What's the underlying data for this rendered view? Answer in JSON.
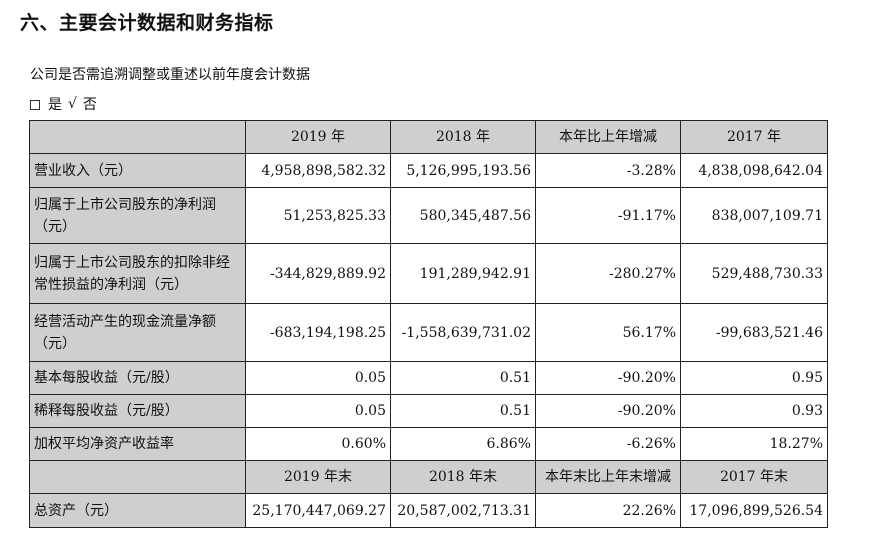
{
  "heading": "六、主要会计数据和财务指标",
  "note": "公司是否需追溯调整或重述以前年度会计数据",
  "options": {
    "checkbox": "□",
    "yes": "是",
    "check": "√",
    "no": "否"
  },
  "table": {
    "header1": [
      "",
      "2019 年",
      "2018 年",
      "本年比上年增减",
      "2017 年"
    ],
    "rows1": [
      {
        "label": "营业收入（元）",
        "values": [
          "4,958,898,582.32",
          "5,126,995,193.56",
          "-3.28%",
          "4,838,098,642.04"
        ]
      },
      {
        "label_line1": "归属于上市公司股东的净利润",
        "label_line2": "（元）",
        "values": [
          "51,253,825.33",
          "580,345,487.56",
          "-91.17%",
          "838,007,109.71"
        ]
      },
      {
        "label_line1": "归属于上市公司股东的扣除非经",
        "label_line2": "常性损益的净利润（元）",
        "values": [
          "-344,829,889.92",
          "191,289,942.91",
          "-280.27%",
          "529,488,730.33"
        ]
      },
      {
        "label_line1": "经营活动产生的现金流量净额",
        "label_line2": "（元）",
        "values": [
          "-683,194,198.25",
          "-1,558,639,731.02",
          "56.17%",
          "-99,683,521.46"
        ]
      },
      {
        "label": "基本每股收益（元/股）",
        "values": [
          "0.05",
          "0.51",
          "-90.20%",
          "0.95"
        ]
      },
      {
        "label": "稀释每股收益（元/股）",
        "values": [
          "0.05",
          "0.51",
          "-90.20%",
          "0.93"
        ]
      },
      {
        "label": "加权平均净资产收益率",
        "values": [
          "0.60%",
          "6.86%",
          "-6.26%",
          "18.27%"
        ]
      }
    ],
    "header2": [
      "",
      "2019 年末",
      "2018 年末",
      "本年末比上年末增减",
      "2017 年末"
    ],
    "rows2": [
      {
        "label": "总资产（元）",
        "values": [
          "25,170,447,069.27",
          "20,587,002,713.31",
          "22.26%",
          "17,096,899,526.54"
        ]
      }
    ]
  }
}
